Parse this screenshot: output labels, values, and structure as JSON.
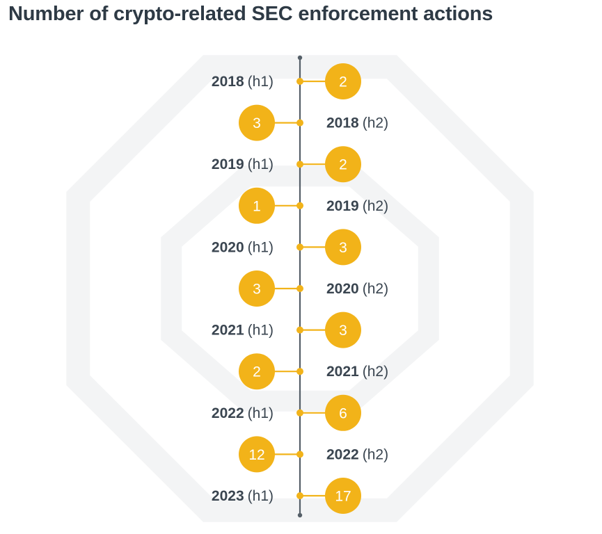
{
  "title": "Number of crypto-related SEC enforcement actions",
  "colors": {
    "accent": "#f2b319",
    "axis": "#555f68",
    "text": "#3a4550",
    "bubble_text": "#ffffff",
    "watermark": "#f3f4f5"
  },
  "chart_data": {
    "type": "timeline",
    "title": "Number of crypto-related SEC enforcement actions",
    "points": [
      {
        "year": "2018",
        "half": "(h1)",
        "value": 2
      },
      {
        "year": "2018",
        "half": "(h2)",
        "value": 3
      },
      {
        "year": "2019",
        "half": "(h1)",
        "value": 2
      },
      {
        "year": "2019",
        "half": "(h2)",
        "value": 1
      },
      {
        "year": "2020",
        "half": "(h1)",
        "value": 3
      },
      {
        "year": "2020",
        "half": "(h2)",
        "value": 3
      },
      {
        "year": "2021",
        "half": "(h1)",
        "value": 3
      },
      {
        "year": "2021",
        "half": "(h2)",
        "value": 2
      },
      {
        "year": "2022",
        "half": "(h1)",
        "value": 6
      },
      {
        "year": "2022",
        "half": "(h2)",
        "value": 12
      },
      {
        "year": "2023",
        "half": "(h1)",
        "value": 17
      }
    ]
  }
}
